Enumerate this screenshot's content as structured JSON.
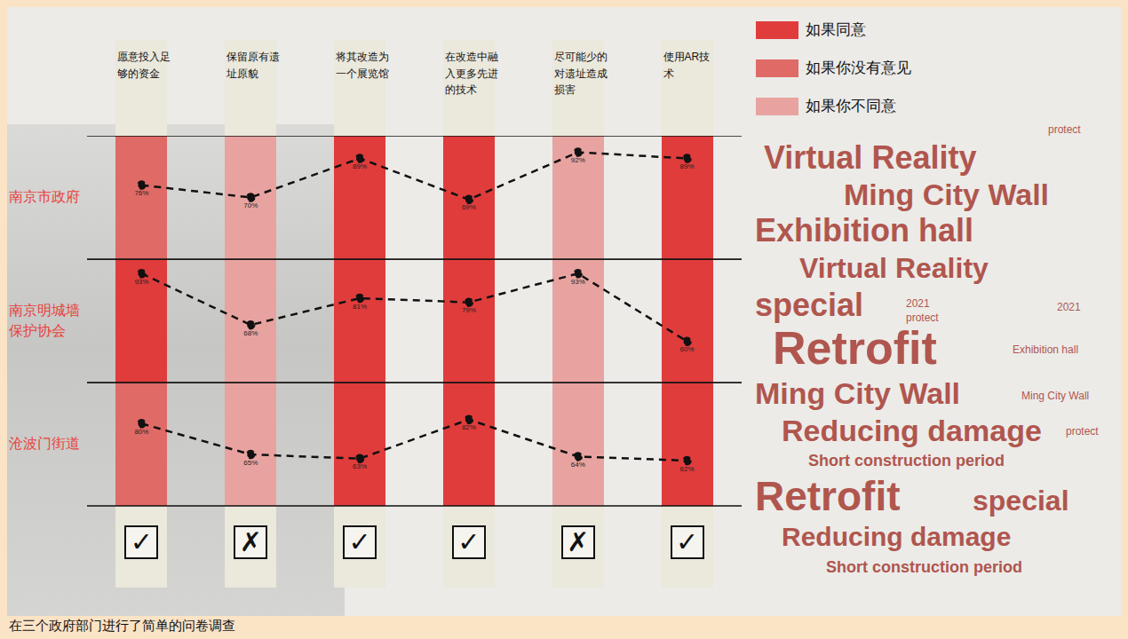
{
  "chart_data": {
    "type": "line",
    "categories": [
      "愿意投入足够的资金",
      "保留原有遗址原貌",
      "将其改造为一个展览馆",
      "在改造中融入更多先进的技术",
      "尽可能少的对遗址造成损害",
      "使用AR技术"
    ],
    "series": [
      {
        "name": "南京市政府",
        "color": "#111111",
        "values": [
          76,
          70,
          89,
          69,
          92,
          89
        ],
        "value_labels": [
          "76%",
          "70%",
          "89%",
          "69%",
          "92%",
          "89%"
        ]
      },
      {
        "name": "南京明城墙保护协会",
        "color": "#111111",
        "values": [
          93,
          68,
          81,
          79,
          93,
          60
        ],
        "value_labels": [
          "93%",
          "68%",
          "81%",
          "79%",
          "93%",
          "60%"
        ]
      },
      {
        "name": "沧波门街道",
        "color": "#111111",
        "values": [
          80,
          65,
          63,
          82,
          64,
          62
        ],
        "value_labels": [
          "80%",
          "65%",
          "63%",
          "82%",
          "64%",
          "62%"
        ]
      }
    ],
    "ylim": [
      40,
      100
    ],
    "yticks": [],
    "tick_labels": false,
    "marker": "circle",
    "line_style": "dashed",
    "data_labels": true,
    "legend": "top right",
    "legend_items": [
      {
        "label": "如果同意",
        "color": "#e03c3c"
      },
      {
        "label": "如果你没有意见",
        "color": "#e06a66"
      },
      {
        "label": "如果你不同意",
        "color": "#e8a3a0"
      }
    ],
    "cell_responses": [
      [
        "如果你没有意见",
        "如果你不同意",
        "如果同意",
        "如果同意",
        "如果你不同意",
        "如果同意"
      ],
      [
        "如果同意",
        "如果你不同意",
        "如果同意",
        "如果同意",
        "如果你不同意",
        "如果同意"
      ],
      [
        "如果你没有意见",
        "如果你不同意",
        "如果同意",
        "如果同意",
        "如果你不同意",
        "如果同意"
      ]
    ],
    "verdicts": [
      "✓",
      "✗",
      "✓",
      "✓",
      "✗",
      "✓"
    ],
    "caption": "在三个政府部门进行了简单的问卷调查",
    "word_cloud": [
      "Virtual Reality",
      "Ming City Wall",
      "Exhibition hall",
      "Virtual Reality",
      "special",
      "Retrofit",
      "Ming City Wall",
      "Reducing damage",
      "Short construction period",
      "Retrofit",
      "special",
      "Reducing damage",
      "Short construction period",
      "protect",
      "2021",
      "protect",
      "Exhibition hall",
      "2021",
      "Ming City Wall",
      "protect"
    ]
  }
}
